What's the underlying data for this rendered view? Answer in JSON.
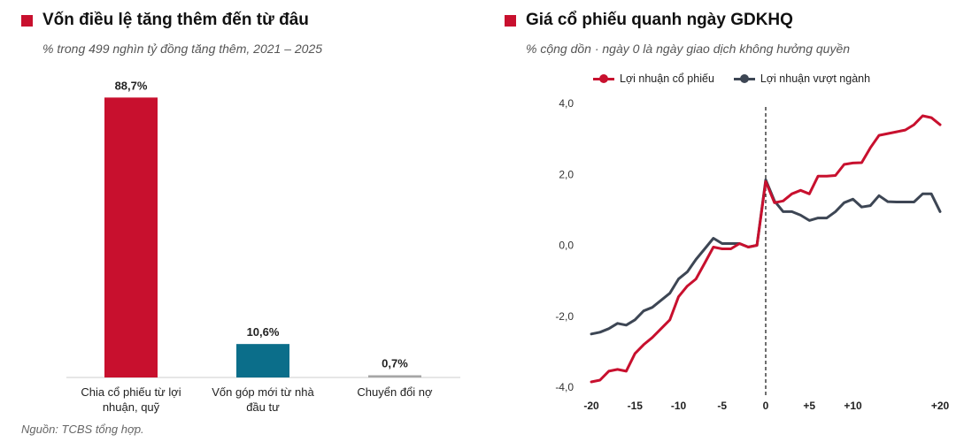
{
  "colors": {
    "accent_red": "#c8102e",
    "teal": "#0b6e8a",
    "gray_bar": "#a6a6a6",
    "dark_line": "#3d4654",
    "axis": "#999999"
  },
  "left": {
    "title": "Vốn điều lệ tăng thêm đến từ đâu",
    "subtitle": "% trong 499 nghìn tỷ đồng tăng thêm, 2021 – 2025",
    "source": "Nguồn: TCBS tổng hợp.",
    "chart_data": {
      "type": "bar",
      "categories": [
        "Chia cổ phiếu từ lợi nhuận, quỹ",
        "Vốn góp mới từ nhà đầu tư",
        "Chuyển đổi nợ"
      ],
      "values": [
        88.7,
        10.6,
        0.7
      ],
      "value_labels": [
        "88,7%",
        "10,6%",
        "0,7%"
      ],
      "colors": [
        "#c8102e",
        "#0b6e8a",
        "#a6a6a6"
      ],
      "ylim": [
        0,
        100
      ]
    }
  },
  "right": {
    "title": "Giá cổ phiếu quanh ngày GDKHQ",
    "subtitle": "% cộng dồn · ngày 0 là ngày giao dịch không hưởng quyền",
    "legend": [
      "Lợi nhuận cổ phiếu",
      "Lợi nhuận vượt ngành"
    ],
    "chart_data": {
      "type": "line",
      "x": [
        -20,
        -19,
        -18,
        -17,
        -16,
        -15,
        -14,
        -13,
        -12,
        -11,
        -10,
        -9,
        -8,
        -7,
        -6,
        -5,
        -4,
        -3,
        -2,
        -1,
        0,
        1,
        2,
        3,
        4,
        5,
        6,
        7,
        8,
        9,
        10,
        11,
        12,
        13,
        14,
        15,
        16,
        17,
        18,
        19,
        20
      ],
      "series": [
        {
          "name": "Lợi nhuận cổ phiếu",
          "color": "#c8102e",
          "values": [
            -3.85,
            -3.8,
            -3.55,
            -3.5,
            -3.55,
            -3.05,
            -2.8,
            -2.6,
            -2.35,
            -2.1,
            -1.45,
            -1.15,
            -0.95,
            -0.5,
            -0.05,
            -0.1,
            -0.1,
            0.05,
            -0.05,
            0.0,
            1.8,
            1.2,
            1.25,
            1.45,
            1.55,
            1.45,
            1.95,
            1.95,
            1.97,
            2.28,
            2.32,
            2.33,
            2.75,
            3.1,
            3.15,
            3.2,
            3.25,
            3.4,
            3.65,
            3.6,
            3.4
          ]
        },
        {
          "name": "Lợi nhuận vượt ngành",
          "color": "#3d4654",
          "values": [
            -2.5,
            -2.45,
            -2.35,
            -2.2,
            -2.25,
            -2.1,
            -1.85,
            -1.75,
            -1.55,
            -1.35,
            -0.95,
            -0.75,
            -0.4,
            -0.1,
            0.2,
            0.05,
            0.05,
            0.05,
            -0.05,
            0.0,
            1.85,
            1.25,
            0.95,
            0.95,
            0.85,
            0.7,
            0.77,
            0.77,
            0.95,
            1.2,
            1.3,
            1.08,
            1.12,
            1.4,
            1.23,
            1.22,
            1.22,
            1.22,
            1.45,
            1.45,
            0.95
          ]
        }
      ],
      "yticks": [
        "-4,0",
        "-2,0",
        "0,0",
        "2,0",
        "4,0"
      ],
      "ytick_values": [
        -4,
        -2,
        0,
        2,
        4
      ],
      "xticks": [
        "-20",
        "-15",
        "-10",
        "-5",
        "0",
        "+5",
        "+10",
        "+20"
      ],
      "xtick_values": [
        -20,
        -15,
        -10,
        -5,
        0,
        5,
        10,
        20
      ],
      "ylim": [
        -4,
        4
      ],
      "xlim": [
        -20,
        20
      ],
      "vline_x": 0
    }
  }
}
